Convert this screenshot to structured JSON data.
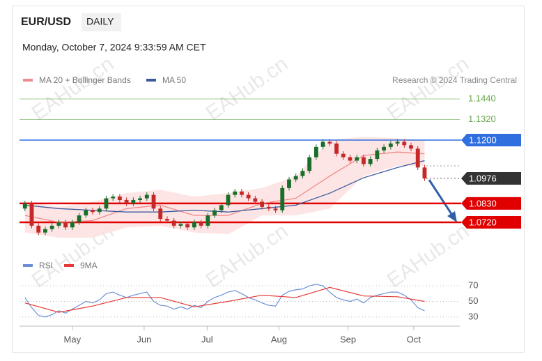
{
  "chart_data": {
    "type": "candlestick",
    "title": "EUR/USD",
    "timeframe": "DAILY",
    "subtitle": "Monday, October 7, 2024 9:33:59 AM CET",
    "source": "Research © 2024 Trading Central",
    "watermark": "EAHub.cn",
    "up_color": "#1b6e2a",
    "down_color": "#c62828",
    "x": [
      0,
      1,
      2,
      3,
      4,
      5,
      6,
      7,
      8,
      9,
      10,
      11,
      12,
      13,
      14,
      15,
      16,
      17,
      18,
      19,
      20,
      21,
      22,
      23,
      24,
      25,
      26,
      27,
      28,
      29,
      30,
      31,
      32,
      33,
      34,
      35,
      36,
      37,
      38,
      39,
      40,
      41,
      42,
      43,
      44,
      45,
      46,
      47,
      48,
      49,
      50,
      51,
      52,
      53,
      54,
      55,
      56,
      57,
      58,
      59
    ],
    "open": [
      1.08,
      1.083,
      1.07,
      1.066,
      1.068,
      1.07,
      1.072,
      1.069,
      1.072,
      1.076,
      1.079,
      1.078,
      1.08,
      1.086,
      1.087,
      1.085,
      1.083,
      1.085,
      1.086,
      1.088,
      1.08,
      1.074,
      1.073,
      1.07,
      1.071,
      1.069,
      1.072,
      1.07,
      1.076,
      1.079,
      1.082,
      1.088,
      1.09,
      1.088,
      1.086,
      1.084,
      1.081,
      1.08,
      1.079,
      1.092,
      1.097,
      1.099,
      1.102,
      1.11,
      1.116,
      1.119,
      1.118,
      1.112,
      1.11,
      1.108,
      1.11,
      1.106,
      1.109,
      1.114,
      1.116,
      1.118,
      1.119,
      1.117,
      1.115,
      1.104
    ],
    "high": [
      1.0845,
      1.0845,
      1.0715,
      1.0695,
      1.0715,
      1.0735,
      1.0735,
      1.0735,
      1.0775,
      1.0805,
      1.0805,
      1.0815,
      1.0875,
      1.0885,
      1.0885,
      1.0865,
      1.0865,
      1.0875,
      1.0895,
      1.0895,
      1.0815,
      1.0755,
      1.0745,
      1.0725,
      1.0725,
      1.0735,
      1.0735,
      1.0775,
      1.0805,
      1.0835,
      1.0895,
      1.0915,
      1.0915,
      1.0895,
      1.0875,
      1.0855,
      1.0825,
      1.0815,
      1.0935,
      1.0985,
      1.1005,
      1.1035,
      1.1115,
      1.1175,
      1.1205,
      1.1205,
      1.1195,
      1.1135,
      1.1115,
      1.1115,
      1.1115,
      1.1105,
      1.1155,
      1.1175,
      1.1195,
      1.1205,
      1.1205,
      1.1185,
      1.1165,
      1.1055
    ],
    "low": [
      1.0785,
      1.0685,
      1.0645,
      1.0645,
      1.0665,
      1.0685,
      1.0675,
      1.0675,
      1.0705,
      1.0745,
      1.0765,
      1.0765,
      1.0785,
      1.0845,
      1.0835,
      1.0815,
      1.0815,
      1.0835,
      1.0845,
      1.0785,
      1.0725,
      1.0715,
      1.0685,
      1.0685,
      1.0675,
      1.0675,
      1.0685,
      1.0685,
      1.0745,
      1.0775,
      1.0805,
      1.0865,
      1.0865,
      1.0845,
      1.0825,
      1.0795,
      1.0785,
      1.0775,
      1.0775,
      1.0905,
      1.0955,
      1.0975,
      1.1005,
      1.1085,
      1.1145,
      1.1165,
      1.1105,
      1.1085,
      1.1065,
      1.1065,
      1.1045,
      1.1045,
      1.1075,
      1.1125,
      1.1145,
      1.1165,
      1.1155,
      1.1135,
      1.1025,
      1.0961
    ],
    "close": [
      1.083,
      1.07,
      1.066,
      1.068,
      1.07,
      1.072,
      1.069,
      1.072,
      1.076,
      1.079,
      1.078,
      1.08,
      1.086,
      1.087,
      1.085,
      1.083,
      1.085,
      1.086,
      1.088,
      1.08,
      1.074,
      1.073,
      1.07,
      1.071,
      1.069,
      1.072,
      1.07,
      1.076,
      1.079,
      1.082,
      1.088,
      1.09,
      1.088,
      1.086,
      1.084,
      1.081,
      1.08,
      1.079,
      1.092,
      1.097,
      1.099,
      1.102,
      1.11,
      1.116,
      1.119,
      1.118,
      1.112,
      1.11,
      1.108,
      1.11,
      1.106,
      1.109,
      1.114,
      1.116,
      1.118,
      1.119,
      1.117,
      1.115,
      1.104,
      1.0976
    ],
    "xlim": [
      -0.8,
      64.2
    ],
    "xticks": [
      {
        "value": 7.0,
        "label": "May"
      },
      {
        "value": 17.6,
        "label": "Jun"
      },
      {
        "value": 26.9,
        "label": "Jul"
      },
      {
        "value": 37.5,
        "label": "Aug"
      },
      {
        "value": 47.7,
        "label": "Sep"
      },
      {
        "value": 57.4,
        "label": "Oct"
      }
    ],
    "ylim": [
      1.0614,
      1.1489
    ],
    "overlays": [
      {
        "name": "MA 20 + Bollinger Bands",
        "color": "#f08a8a",
        "band_color": "#fde0e0",
        "x": [
          0,
          5,
          10,
          15,
          20,
          25,
          30,
          35,
          40,
          45,
          50,
          55,
          59
        ],
        "values": [
          1.076,
          1.072,
          1.073,
          1.08,
          1.082,
          1.076,
          1.076,
          1.083,
          1.086,
          1.099,
          1.111,
          1.113,
          1.112
        ],
        "upper": [
          1.084,
          1.081,
          1.084,
          1.089,
          1.091,
          1.087,
          1.089,
          1.092,
          1.099,
          1.12,
          1.122,
          1.121,
          1.12
        ],
        "lower": [
          1.066,
          1.063,
          1.063,
          1.069,
          1.07,
          1.066,
          1.065,
          1.076,
          1.076,
          1.08,
          1.099,
          1.105,
          1.105
        ]
      },
      {
        "name": "MA 50",
        "color": "#3a5a9c",
        "x": [
          0,
          5,
          10,
          15,
          20,
          25,
          30,
          35,
          40,
          45,
          50,
          55,
          59
        ],
        "values": [
          1.082,
          1.08,
          1.079,
          1.078,
          1.078,
          1.079,
          1.078,
          1.08,
          1.082,
          1.089,
          1.098,
          1.104,
          1.108
        ]
      }
    ],
    "levels": [
      {
        "value": 1.144,
        "label": "1.1440",
        "color": "#6aa84f",
        "style": "text"
      },
      {
        "value": 1.132,
        "label": "1.1320",
        "color": "#6aa84f",
        "style": "text"
      },
      {
        "value": 1.12,
        "label": "1.1200",
        "color": "#2f6fe0",
        "style": "tag"
      },
      {
        "value": 1.0976,
        "label": "1.0976",
        "color": "#333333",
        "style": "dotted"
      },
      {
        "value": 1.083,
        "label": "1.0830",
        "color": "#e00000",
        "style": "tag"
      },
      {
        "value": 1.072,
        "label": "1.0720",
        "color": "#e00000",
        "style": "tag"
      }
    ],
    "rsi": {
      "ylim": [
        20,
        80
      ],
      "yticks": [
        30,
        50,
        70
      ],
      "series": [
        {
          "name": "RSI",
          "color": "#6b8fd6",
          "values": [
            55,
            42,
            32,
            30,
            33,
            38,
            35,
            40,
            45,
            50,
            48,
            52,
            60,
            62,
            58,
            55,
            58,
            60,
            62,
            50,
            45,
            44,
            40,
            43,
            40,
            45,
            42,
            50,
            55,
            58,
            62,
            64,
            60,
            55,
            52,
            48,
            45,
            44,
            58,
            63,
            65,
            66,
            70,
            72,
            70,
            62,
            55,
            52,
            50,
            53,
            48,
            55,
            58,
            60,
            62,
            62,
            58,
            52,
            42,
            38
          ]
        },
        {
          "name": "9MA",
          "color": "#e53935",
          "x": [
            0,
            5,
            10,
            15,
            20,
            25,
            30,
            35,
            40,
            45,
            50,
            55,
            59
          ],
          "values": [
            48,
            36,
            44,
            55,
            55,
            43,
            50,
            58,
            55,
            68,
            57,
            56,
            50
          ]
        }
      ]
    }
  }
}
